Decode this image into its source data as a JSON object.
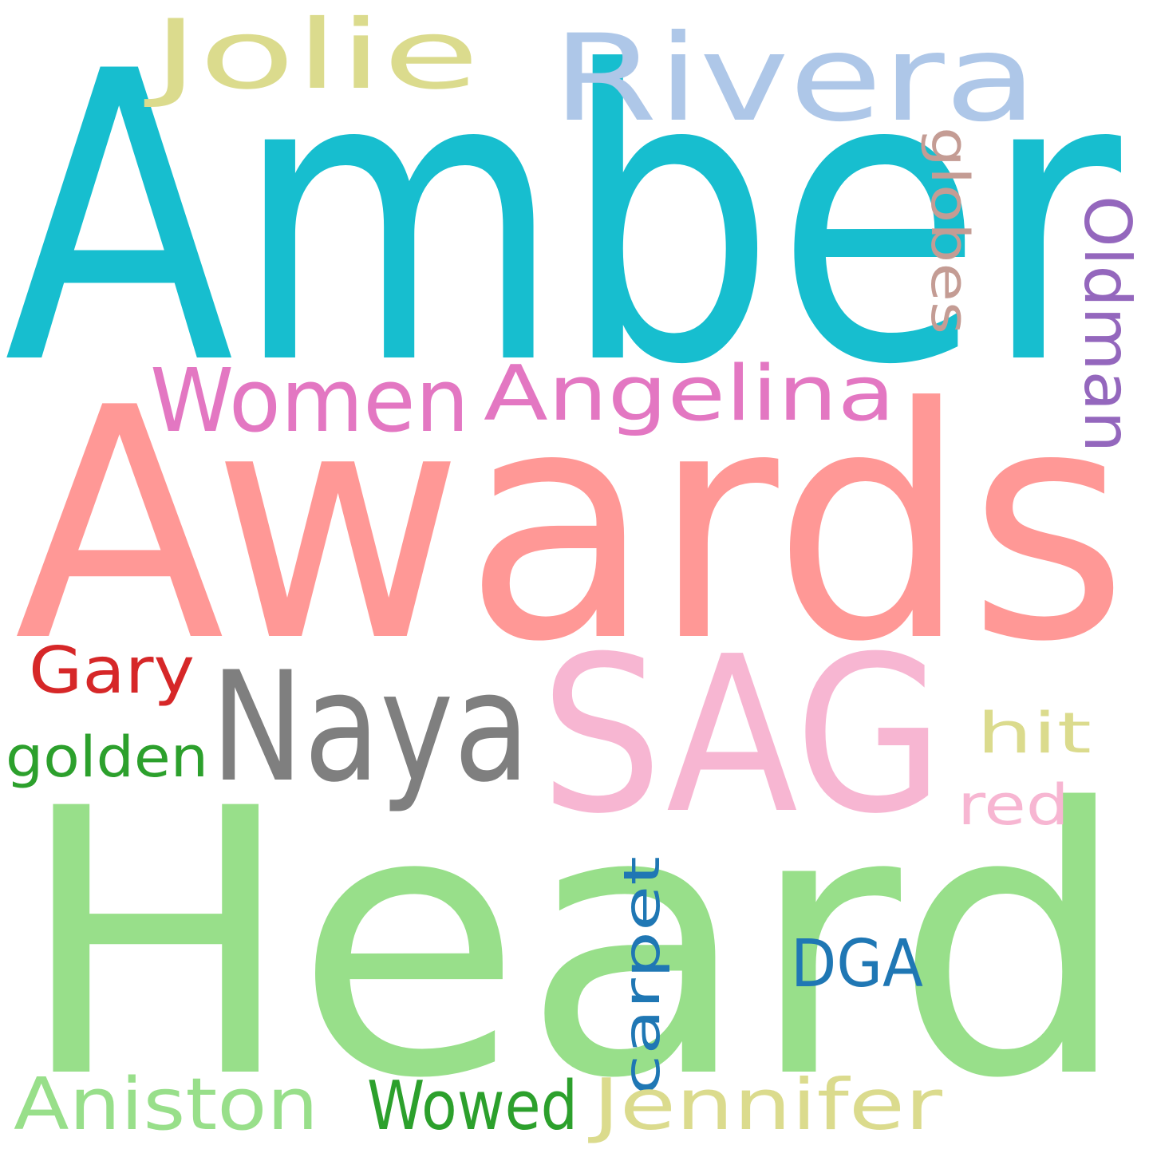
{
  "words": [
    {
      "text": "Amber",
      "color": "#17becf"
    },
    {
      "text": "Awards",
      "color": "#ff9896"
    },
    {
      "text": "Heard",
      "color": "#98df8a"
    },
    {
      "text": "SAG",
      "color": "#f7b6d2"
    },
    {
      "text": "Naya",
      "color": "#7f7f7f"
    },
    {
      "text": "Rivera",
      "color": "#aec7e8"
    },
    {
      "text": "Jolie",
      "color": "#dbdb8d"
    },
    {
      "text": "Women",
      "color": "#e377c2"
    },
    {
      "text": "Angelina",
      "color": "#e377c2"
    },
    {
      "text": "Oldman",
      "color": "#9467bd"
    },
    {
      "text": "globes",
      "color": "#c49c94"
    },
    {
      "text": "Gary",
      "color": "#d62728"
    },
    {
      "text": "golden",
      "color": "#2ca02c"
    },
    {
      "text": "hit",
      "color": "#dbdb8d"
    },
    {
      "text": "red",
      "color": "#f7b6d2"
    },
    {
      "text": "carpet",
      "color": "#1f77b4"
    },
    {
      "text": "DGA",
      "color": "#1f77b4"
    },
    {
      "text": "Aniston",
      "color": "#98df8a"
    },
    {
      "text": "Wowed",
      "color": "#2ca02c"
    },
    {
      "text": "Jennifer",
      "color": "#dbdb8d"
    }
  ]
}
